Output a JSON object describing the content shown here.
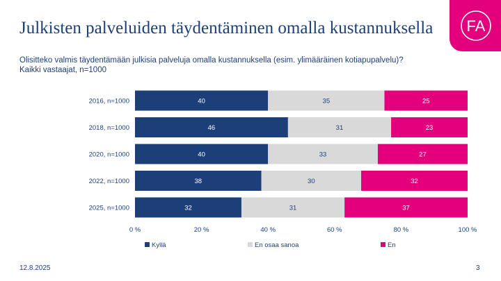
{
  "header": {
    "title": "Julkisten palveluiden täydentäminen omalla kustannuksella",
    "question": "Olisitteko valmis täydentämään julkisia palveluja omalla kustannuksella (esim. ylimääräinen kotiapupalvelu)?",
    "base": "Kaikki vastaajat, n=1000"
  },
  "logo": {
    "text": "FA",
    "color": "#e4007c"
  },
  "footer": {
    "date": "12.8.2025",
    "page": "3"
  },
  "colors": {
    "text": "#1c3f7a"
  },
  "chart_data": {
    "type": "bar",
    "orientation": "horizontal",
    "stacked": true,
    "categories": [
      "2016, n=1000",
      "2018, n=1000",
      "2020, n=1000",
      "2022, n=1000",
      "2025, n=1000"
    ],
    "series": [
      {
        "name": "Kyllä",
        "color": "#1c3f7a",
        "label_color": "#ffffff",
        "values": [
          40,
          46,
          40,
          38,
          32
        ]
      },
      {
        "name": "En osaa sanoa",
        "color": "#d9d9d9",
        "label_color": "#1c3f7a",
        "values": [
          35,
          31,
          33,
          30,
          31
        ]
      },
      {
        "name": "En",
        "color": "#e4007c",
        "label_color": "#ffffff",
        "values": [
          25,
          23,
          27,
          32,
          37
        ]
      }
    ],
    "xlim": [
      0,
      100
    ],
    "xticks": [
      "0 %",
      "20 %",
      "40 %",
      "60 %",
      "80 %",
      "100 %"
    ],
    "grid": false,
    "legend": "bottom"
  }
}
